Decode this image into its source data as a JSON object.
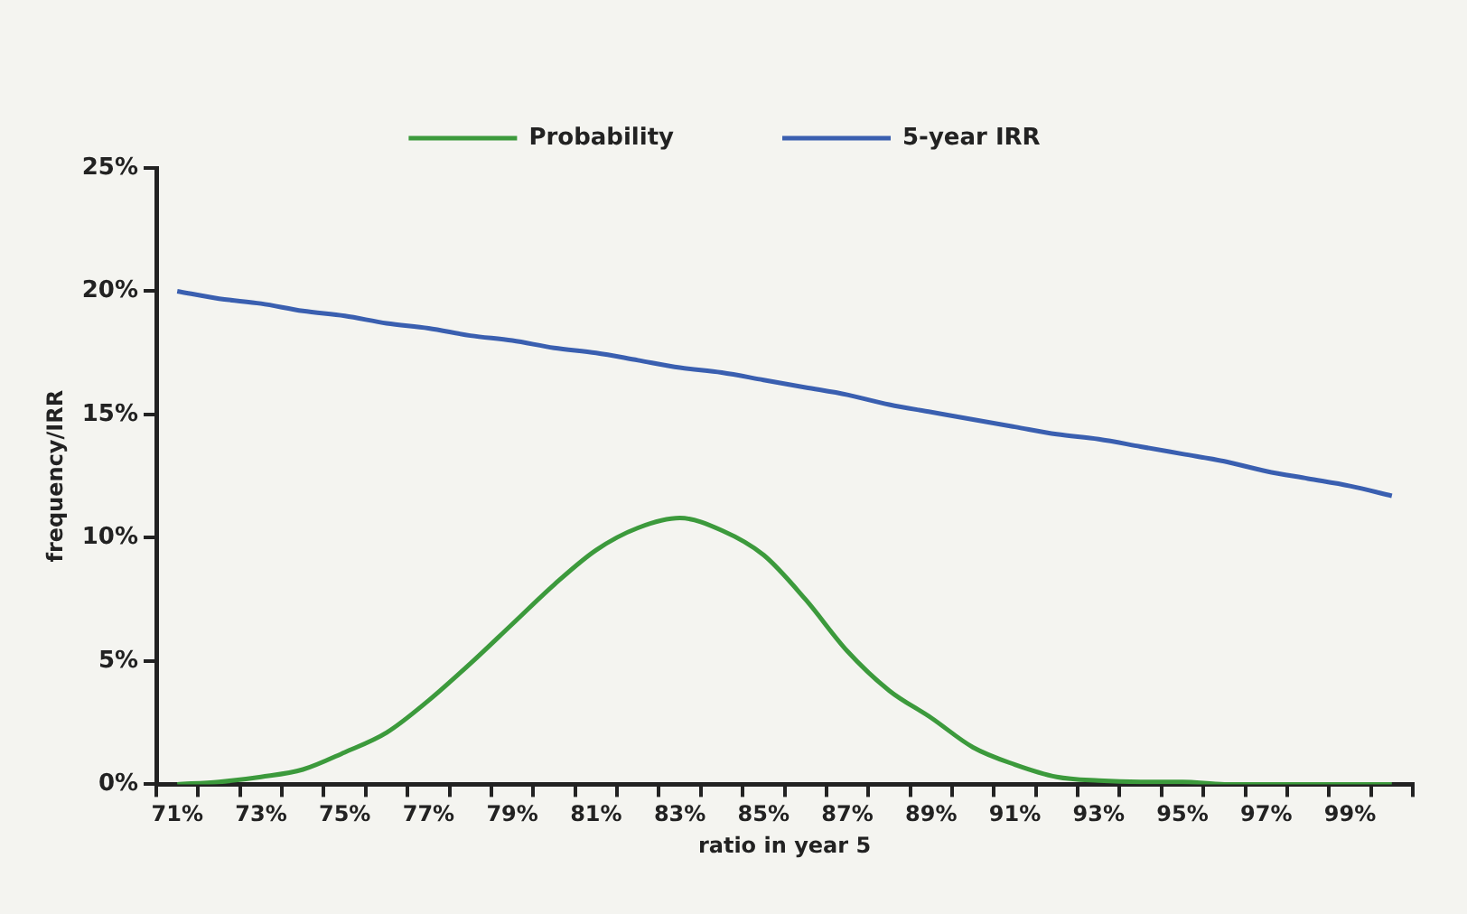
{
  "chart_data": {
    "type": "line",
    "xlabel": "ratio in year 5",
    "ylabel": "frequency/IRR",
    "categories": [
      "71%",
      null,
      "73%",
      null,
      "75%",
      null,
      "77%",
      null,
      "79%",
      null,
      "81%",
      null,
      "83%",
      null,
      "85%",
      null,
      "87%",
      null,
      "89%",
      null,
      "91%",
      null,
      "93%",
      null,
      "95%",
      null,
      "97%",
      null,
      "99%",
      null
    ],
    "series": [
      {
        "name": "Probability",
        "color": "#3c9a3c",
        "values": [
          0.0,
          0.1,
          0.3,
          0.6,
          1.3,
          2.1,
          3.4,
          4.9,
          6.5,
          8.1,
          9.5,
          10.4,
          10.8,
          10.3,
          9.3,
          7.5,
          5.4,
          3.8,
          2.7,
          1.5,
          0.8,
          0.3,
          0.15,
          0.1,
          0.1,
          0.0,
          0.0,
          0.0,
          0.0,
          0.0
        ]
      },
      {
        "name": "5-year IRR",
        "color": "#3a5fb0",
        "values": [
          20.0,
          19.7,
          19.5,
          19.2,
          19.0,
          18.7,
          18.5,
          18.2,
          18.0,
          17.7,
          17.5,
          17.2,
          16.9,
          16.7,
          16.4,
          16.1,
          15.8,
          15.4,
          15.1,
          14.8,
          14.5,
          14.2,
          14.0,
          13.7,
          13.4,
          13.1,
          12.7,
          12.4,
          12.1,
          11.7
        ]
      }
    ],
    "ylim": [
      0,
      25
    ],
    "yticks": [
      {
        "value": 0,
        "label": "0%"
      },
      {
        "value": 5,
        "label": "5%"
      },
      {
        "value": 10,
        "label": "10%"
      },
      {
        "value": 15,
        "label": "15%"
      },
      {
        "value": 20,
        "label": "20%"
      },
      {
        "value": 25,
        "label": "25%"
      }
    ],
    "grid": false,
    "legend": "top",
    "marker": "none",
    "line_style": "solid"
  }
}
